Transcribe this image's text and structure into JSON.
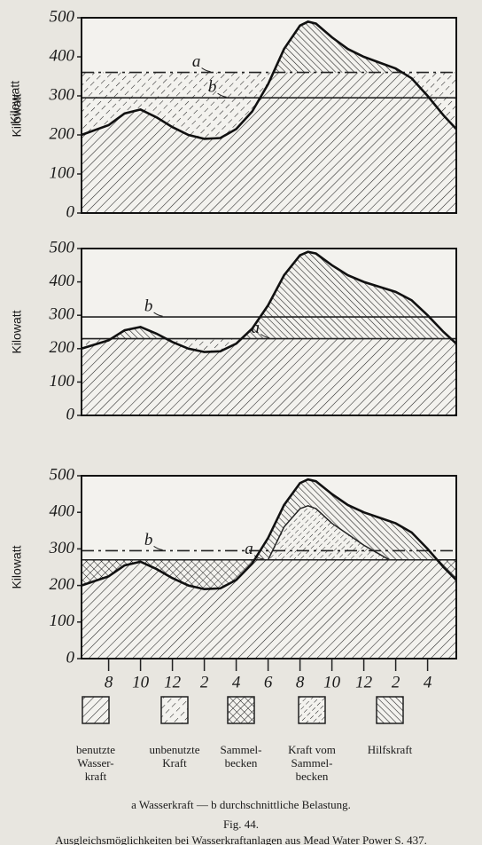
{
  "chart_data": {
    "type": "area",
    "ylabel": "Kilowatt",
    "ylim": [
      0,
      500
    ],
    "yticks": [
      0,
      100,
      200,
      300,
      400,
      500
    ],
    "xlim": [
      6.3,
      29.8
    ],
    "xticks": [
      {
        "value": 8,
        "label": "8"
      },
      {
        "value": 10,
        "label": "10"
      },
      {
        "value": 12,
        "label": "12"
      },
      {
        "value": 14,
        "label": "2"
      },
      {
        "value": 16,
        "label": "4"
      },
      {
        "value": 18,
        "label": "6"
      },
      {
        "value": 20,
        "label": "8"
      },
      {
        "value": 22,
        "label": "10"
      },
      {
        "value": 24,
        "label": "12"
      },
      {
        "value": 26,
        "label": "2"
      },
      {
        "value": 28,
        "label": "4"
      }
    ],
    "x": [
      6.3,
      8,
      9,
      10,
      11,
      12,
      13,
      14,
      15,
      16,
      17,
      18,
      19,
      20,
      20.5,
      21,
      22,
      23,
      24,
      25,
      26,
      27,
      28,
      29,
      29.8
    ],
    "panels": [
      {
        "values": [
          200,
          225,
          255,
          265,
          245,
          220,
          200,
          190,
          192,
          215,
          260,
          330,
          420,
          480,
          490,
          485,
          450,
          420,
          400,
          385,
          370,
          345,
          300,
          250,
          215
        ],
        "lines": [
          {
            "label": "a",
            "value": 360
          },
          {
            "label": "b",
            "value": 295
          }
        ]
      },
      {
        "values": [
          200,
          225,
          255,
          265,
          245,
          220,
          200,
          190,
          192,
          215,
          260,
          330,
          420,
          480,
          490,
          485,
          450,
          420,
          400,
          385,
          370,
          345,
          300,
          250,
          215
        ],
        "lines": [
          {
            "label": "b",
            "value": 295
          },
          {
            "label": "a",
            "value": 230
          }
        ]
      },
      {
        "values": [
          200,
          225,
          255,
          265,
          245,
          220,
          200,
          190,
          192,
          215,
          260,
          330,
          420,
          480,
          490,
          485,
          450,
          420,
          400,
          385,
          370,
          345,
          300,
          250,
          215
        ],
        "lines": [
          {
            "label": "b",
            "value": 295
          },
          {
            "label": "a",
            "value": 270
          }
        ],
        "stored": {
          "x": [
            18,
            19,
            20,
            20.5,
            21,
            22,
            23,
            24,
            25,
            25.6
          ],
          "values": [
            270,
            360,
            410,
            418,
            410,
            370,
            340,
            310,
            285,
            270
          ]
        }
      }
    ],
    "legend": [
      [
        "benutzte",
        "Wasser-",
        "kraft"
      ],
      [
        "unbenutzte",
        "Kraft"
      ],
      [
        "Sammel-",
        "becken"
      ],
      [
        "Kraft vom",
        "Sammel-",
        "becken"
      ],
      [
        "Hilfskraft"
      ]
    ],
    "caption": [
      "a Wasserkraft — b durchschnittliche Belastung.",
      "Fig. 44.",
      "Ausgleichsmöglichkeiten bei Wasserkraftanlagen aus Mead Water Power S. 437."
    ]
  }
}
